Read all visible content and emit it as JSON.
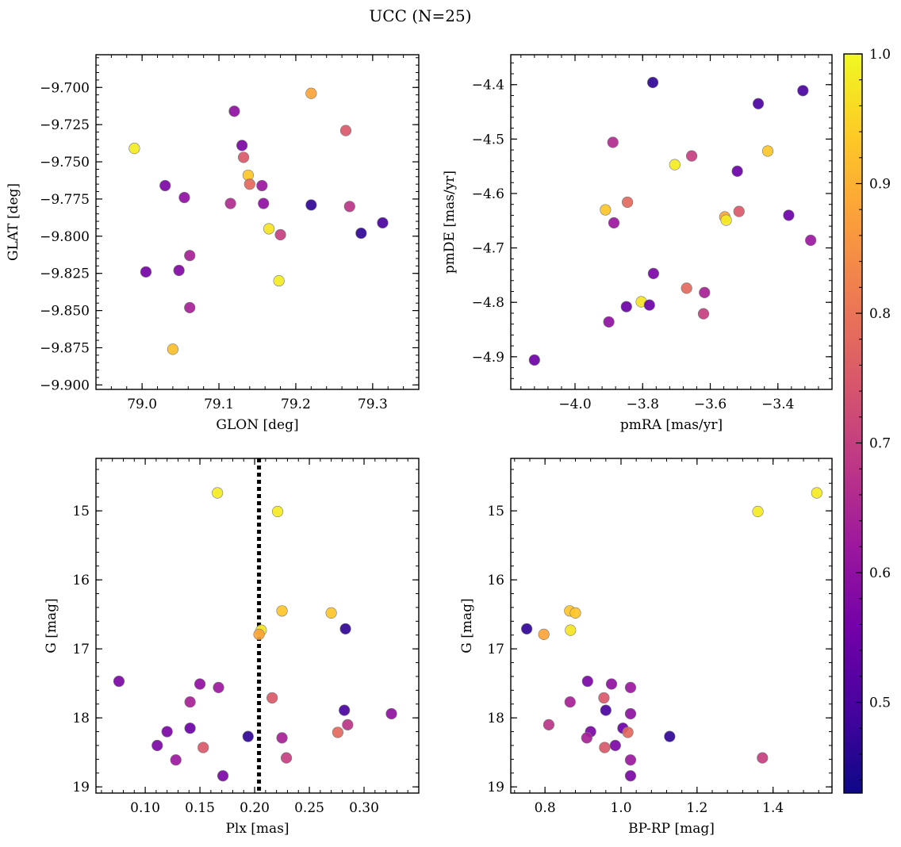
{
  "figure": {
    "title": "UCC (N=25)"
  },
  "chart_data": [
    {
      "type": "scatter",
      "xlabel": "GLON [deg]",
      "ylabel": "GLAT [deg]",
      "xlim": [
        78.94,
        79.36
      ],
      "ylim": [
        -9.903,
        -9.678
      ],
      "xticks": [
        79.0,
        79.1,
        79.2,
        79.3
      ],
      "xtick_labels": [
        "79.0",
        "79.1",
        "79.2",
        "79.3"
      ],
      "yticks": [
        -9.7,
        -9.725,
        -9.75,
        -9.775,
        -9.8,
        -9.825,
        -9.85,
        -9.875,
        -9.9
      ],
      "ytick_labels": [
        "−9.700",
        "−9.725",
        "−9.750",
        "−9.775",
        "−9.800",
        "−9.825",
        "−9.850",
        "−9.875",
        "−9.900"
      ],
      "points": [
        {
          "x": 79.22,
          "y": -9.704,
          "c": 0.88
        },
        {
          "x": 78.99,
          "y": -9.741,
          "c": 0.98
        },
        {
          "x": 79.12,
          "y": -9.716,
          "c": 0.6
        },
        {
          "x": 79.13,
          "y": -9.739,
          "c": 0.57
        },
        {
          "x": 79.132,
          "y": -9.747,
          "c": 0.75
        },
        {
          "x": 79.138,
          "y": -9.759,
          "c": 0.93
        },
        {
          "x": 79.14,
          "y": -9.765,
          "c": 0.78
        },
        {
          "x": 79.156,
          "y": -9.766,
          "c": 0.62
        },
        {
          "x": 79.158,
          "y": -9.778,
          "c": 0.6
        },
        {
          "x": 79.115,
          "y": -9.778,
          "c": 0.66
        },
        {
          "x": 79.03,
          "y": -9.766,
          "c": 0.57
        },
        {
          "x": 79.055,
          "y": -9.774,
          "c": 0.6
        },
        {
          "x": 79.265,
          "y": -9.729,
          "c": 0.75
        },
        {
          "x": 79.27,
          "y": -9.78,
          "c": 0.68
        },
        {
          "x": 79.22,
          "y": -9.779,
          "c": 0.47
        },
        {
          "x": 79.165,
          "y": -9.795,
          "c": 0.97
        },
        {
          "x": 79.18,
          "y": -9.799,
          "c": 0.7
        },
        {
          "x": 79.285,
          "y": -9.798,
          "c": 0.47
        },
        {
          "x": 79.313,
          "y": -9.791,
          "c": 0.5
        },
        {
          "x": 79.062,
          "y": -9.813,
          "c": 0.64
        },
        {
          "x": 79.005,
          "y": -9.824,
          "c": 0.56
        },
        {
          "x": 79.048,
          "y": -9.823,
          "c": 0.58
        },
        {
          "x": 79.178,
          "y": -9.83,
          "c": 0.98
        },
        {
          "x": 79.062,
          "y": -9.848,
          "c": 0.64
        },
        {
          "x": 79.04,
          "y": -9.876,
          "c": 0.92
        }
      ]
    },
    {
      "type": "scatter",
      "xlabel": "pmRA [mas/yr]",
      "ylabel": "pmDE [mas/yr]",
      "xlim": [
        -4.19,
        -3.24
      ],
      "ylim": [
        -4.96,
        -4.345
      ],
      "xticks": [
        -4.0,
        -3.8,
        -3.6,
        -3.4
      ],
      "xtick_labels": [
        "−4.0",
        "−3.8",
        "−3.6",
        "−3.4"
      ],
      "yticks": [
        -4.4,
        -4.5,
        -4.6,
        -4.7,
        -4.8,
        -4.9
      ],
      "ytick_labels": [
        "−4.4",
        "−4.5",
        "−4.6",
        "−4.7",
        "−4.8",
        "−4.9"
      ],
      "points": [
        {
          "x": -3.77,
          "y": -4.396,
          "c": 0.47
        },
        {
          "x": -3.326,
          "y": -4.411,
          "c": 0.5
        },
        {
          "x": -3.458,
          "y": -4.435,
          "c": 0.5
        },
        {
          "x": -3.888,
          "y": -4.506,
          "c": 0.66
        },
        {
          "x": -3.43,
          "y": -4.522,
          "c": 0.93
        },
        {
          "x": -3.655,
          "y": -4.531,
          "c": 0.7
        },
        {
          "x": -3.705,
          "y": -4.547,
          "c": 0.98
        },
        {
          "x": -3.52,
          "y": -4.559,
          "c": 0.55
        },
        {
          "x": -3.845,
          "y": -4.616,
          "c": 0.78
        },
        {
          "x": -3.91,
          "y": -4.63,
          "c": 0.93
        },
        {
          "x": -3.515,
          "y": -4.633,
          "c": 0.75
        },
        {
          "x": -3.368,
          "y": -4.64,
          "c": 0.55
        },
        {
          "x": -3.557,
          "y": -4.643,
          "c": 0.88
        },
        {
          "x": -3.553,
          "y": -4.649,
          "c": 0.98
        },
        {
          "x": -3.885,
          "y": -4.654,
          "c": 0.62
        },
        {
          "x": -3.303,
          "y": -4.686,
          "c": 0.62
        },
        {
          "x": -3.768,
          "y": -4.747,
          "c": 0.57
        },
        {
          "x": -3.67,
          "y": -4.774,
          "c": 0.78
        },
        {
          "x": -3.617,
          "y": -4.782,
          "c": 0.64
        },
        {
          "x": -3.804,
          "y": -4.799,
          "c": 0.97
        },
        {
          "x": -3.78,
          "y": -4.805,
          "c": 0.55
        },
        {
          "x": -3.848,
          "y": -4.808,
          "c": 0.55
        },
        {
          "x": -3.62,
          "y": -4.821,
          "c": 0.7
        },
        {
          "x": -3.9,
          "y": -4.836,
          "c": 0.6
        },
        {
          "x": -4.12,
          "y": -4.906,
          "c": 0.55
        }
      ]
    },
    {
      "type": "scatter",
      "xlabel": "Plx [mas]",
      "ylabel": "G [mag]",
      "xlim": [
        0.055,
        0.35
      ],
      "ylim": [
        19.09,
        14.24
      ],
      "y_inverted": true,
      "xticks": [
        0.1,
        0.15,
        0.2,
        0.25,
        0.3
      ],
      "xtick_labels": [
        "0.10",
        "0.15",
        "0.20",
        "0.25",
        "0.30"
      ],
      "yticks": [
        15,
        16,
        17,
        18,
        19
      ],
      "ytick_labels": [
        "15",
        "16",
        "17",
        "18",
        "19"
      ],
      "vline": {
        "x": 0.204,
        "style": "dotted",
        "color": "#000000"
      },
      "points": [
        {
          "x": 0.166,
          "y": 14.74,
          "c": 0.98
        },
        {
          "x": 0.221,
          "y": 15.01,
          "c": 0.98
        },
        {
          "x": 0.225,
          "y": 16.45,
          "c": 0.93
        },
        {
          "x": 0.27,
          "y": 16.48,
          "c": 0.93
        },
        {
          "x": 0.206,
          "y": 16.73,
          "c": 0.97
        },
        {
          "x": 0.204,
          "y": 16.79,
          "c": 0.88
        },
        {
          "x": 0.283,
          "y": 16.71,
          "c": 0.47
        },
        {
          "x": 0.076,
          "y": 17.47,
          "c": 0.57
        },
        {
          "x": 0.15,
          "y": 17.51,
          "c": 0.6
        },
        {
          "x": 0.167,
          "y": 17.56,
          "c": 0.62
        },
        {
          "x": 0.216,
          "y": 17.71,
          "c": 0.75
        },
        {
          "x": 0.141,
          "y": 17.77,
          "c": 0.64
        },
        {
          "x": 0.282,
          "y": 17.89,
          "c": 0.5
        },
        {
          "x": 0.325,
          "y": 17.94,
          "c": 0.6
        },
        {
          "x": 0.285,
          "y": 18.1,
          "c": 0.68
        },
        {
          "x": 0.141,
          "y": 18.15,
          "c": 0.55
        },
        {
          "x": 0.12,
          "y": 18.2,
          "c": 0.57
        },
        {
          "x": 0.276,
          "y": 18.21,
          "c": 0.78
        },
        {
          "x": 0.194,
          "y": 18.27,
          "c": 0.47
        },
        {
          "x": 0.225,
          "y": 18.29,
          "c": 0.64
        },
        {
          "x": 0.111,
          "y": 18.4,
          "c": 0.57
        },
        {
          "x": 0.153,
          "y": 18.43,
          "c": 0.75
        },
        {
          "x": 0.229,
          "y": 18.58,
          "c": 0.7
        },
        {
          "x": 0.128,
          "y": 18.61,
          "c": 0.62
        },
        {
          "x": 0.171,
          "y": 18.84,
          "c": 0.57
        }
      ]
    },
    {
      "type": "scatter",
      "xlabel": "BP-RP [mag]",
      "ylabel": "G [mag]",
      "xlim": [
        0.71,
        1.555
      ],
      "ylim": [
        19.09,
        14.24
      ],
      "y_inverted": true,
      "xticks": [
        0.8,
        1.0,
        1.2,
        1.4
      ],
      "xtick_labels": [
        "0.8",
        "1.0",
        "1.2",
        "1.4"
      ],
      "yticks": [
        15,
        16,
        17,
        18,
        19
      ],
      "ytick_labels": [
        "15",
        "16",
        "17",
        "18",
        "19"
      ],
      "points": [
        {
          "x": 1.515,
          "y": 14.74,
          "c": 0.98
        },
        {
          "x": 1.36,
          "y": 15.01,
          "c": 0.98
        },
        {
          "x": 0.865,
          "y": 16.45,
          "c": 0.93
        },
        {
          "x": 0.88,
          "y": 16.48,
          "c": 0.93
        },
        {
          "x": 0.752,
          "y": 16.71,
          "c": 0.47
        },
        {
          "x": 0.867,
          "y": 16.73,
          "c": 0.97
        },
        {
          "x": 0.797,
          "y": 16.79,
          "c": 0.88
        },
        {
          "x": 0.912,
          "y": 17.47,
          "c": 0.57
        },
        {
          "x": 0.975,
          "y": 17.51,
          "c": 0.6
        },
        {
          "x": 1.025,
          "y": 17.56,
          "c": 0.62
        },
        {
          "x": 0.955,
          "y": 17.71,
          "c": 0.75
        },
        {
          "x": 0.866,
          "y": 17.77,
          "c": 0.64
        },
        {
          "x": 0.96,
          "y": 17.89,
          "c": 0.5
        },
        {
          "x": 1.025,
          "y": 17.94,
          "c": 0.6
        },
        {
          "x": 0.81,
          "y": 18.1,
          "c": 0.68
        },
        {
          "x": 1.005,
          "y": 18.15,
          "c": 0.55
        },
        {
          "x": 0.92,
          "y": 18.2,
          "c": 0.57
        },
        {
          "x": 1.018,
          "y": 18.21,
          "c": 0.78
        },
        {
          "x": 1.128,
          "y": 18.27,
          "c": 0.47
        },
        {
          "x": 0.91,
          "y": 18.29,
          "c": 0.64
        },
        {
          "x": 0.985,
          "y": 18.4,
          "c": 0.57
        },
        {
          "x": 0.957,
          "y": 18.43,
          "c": 0.75
        },
        {
          "x": 1.372,
          "y": 18.58,
          "c": 0.7
        },
        {
          "x": 1.025,
          "y": 18.61,
          "c": 0.62
        },
        {
          "x": 1.025,
          "y": 18.84,
          "c": 0.57
        }
      ]
    }
  ],
  "colorbar": {
    "colormap": "plasma",
    "range": [
      0.43,
      1.0
    ],
    "ticks": [
      0.5,
      0.6,
      0.7,
      0.8,
      0.9,
      1.0
    ],
    "tick_labels": [
      "0.5",
      "0.6",
      "0.7",
      "0.8",
      "0.9",
      "1.0"
    ],
    "colors": [
      "#0d0887",
      "#46039f",
      "#7201a8",
      "#9c179e",
      "#bd3786",
      "#d8576b",
      "#ed7953",
      "#fb9f3a",
      "#fdca26",
      "#f0f921"
    ]
  }
}
